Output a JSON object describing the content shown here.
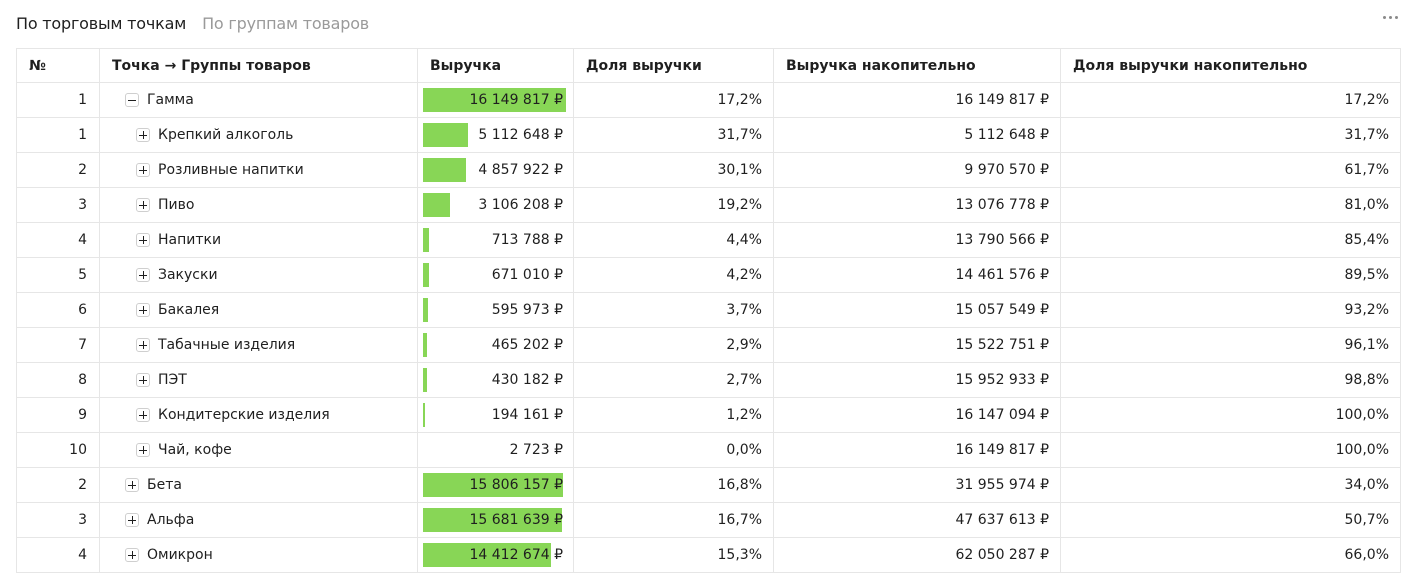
{
  "tabs": [
    {
      "label": "По торговым точкам",
      "active": true
    },
    {
      "label": "По группам товаров",
      "active": false
    }
  ],
  "table": {
    "headers": [
      "№",
      "Точка → Группы товаров",
      "Выручка",
      "Доля выручки",
      "Выручка накопительно",
      "Доля выручки накопительно"
    ],
    "bar_color": "#88d656",
    "rows": [
      {
        "num": "1",
        "name": "Гамма",
        "expanded": true,
        "level": 0,
        "revenue": "16 149 817 ₽",
        "share": "17,2%",
        "cum_revenue": "16 149 817 ₽",
        "cum_share": "17,2%",
        "bar": 1.0
      },
      {
        "num": "1",
        "name": "Крепкий алкоголь",
        "expanded": false,
        "level": 1,
        "revenue": "5 112 648 ₽",
        "share": "31,7%",
        "cum_revenue": "5 112 648 ₽",
        "cum_share": "31,7%",
        "bar": 0.317
      },
      {
        "num": "2",
        "name": "Розливные напитки",
        "expanded": false,
        "level": 1,
        "revenue": "4 857 922 ₽",
        "share": "30,1%",
        "cum_revenue": "9 970 570 ₽",
        "cum_share": "61,7%",
        "bar": 0.301
      },
      {
        "num": "3",
        "name": "Пиво",
        "expanded": false,
        "level": 1,
        "revenue": "3 106 208 ₽",
        "share": "19,2%",
        "cum_revenue": "13 076 778 ₽",
        "cum_share": "81,0%",
        "bar": 0.192
      },
      {
        "num": "4",
        "name": "Напитки",
        "expanded": false,
        "level": 1,
        "revenue": "713 788 ₽",
        "share": "4,4%",
        "cum_revenue": "13 790 566 ₽",
        "cum_share": "85,4%",
        "bar": 0.044
      },
      {
        "num": "5",
        "name": "Закуски",
        "expanded": false,
        "level": 1,
        "revenue": "671 010 ₽",
        "share": "4,2%",
        "cum_revenue": "14 461 576 ₽",
        "cum_share": "89,5%",
        "bar": 0.042
      },
      {
        "num": "6",
        "name": "Бакалея",
        "expanded": false,
        "level": 1,
        "revenue": "595 973 ₽",
        "share": "3,7%",
        "cum_revenue": "15 057 549 ₽",
        "cum_share": "93,2%",
        "bar": 0.037
      },
      {
        "num": "7",
        "name": "Табачные изделия",
        "expanded": false,
        "level": 1,
        "revenue": "465 202 ₽",
        "share": "2,9%",
        "cum_revenue": "15 522 751 ₽",
        "cum_share": "96,1%",
        "bar": 0.029
      },
      {
        "num": "8",
        "name": "ПЭТ",
        "expanded": false,
        "level": 1,
        "revenue": "430 182 ₽",
        "share": "2,7%",
        "cum_revenue": "15 952 933 ₽",
        "cum_share": "98,8%",
        "bar": 0.027
      },
      {
        "num": "9",
        "name": "Кондитерские изделия",
        "expanded": false,
        "level": 1,
        "revenue": "194 161 ₽",
        "share": "1,2%",
        "cum_revenue": "16 147 094 ₽",
        "cum_share": "100,0%",
        "bar": 0.012
      },
      {
        "num": "10",
        "name": "Чай, кофе",
        "expanded": false,
        "level": 1,
        "revenue": "2 723 ₽",
        "share": "0,0%",
        "cum_revenue": "16 149 817 ₽",
        "cum_share": "100,0%",
        "bar": 0.0
      },
      {
        "num": "2",
        "name": "Бета",
        "expanded": false,
        "level": 0,
        "revenue": "15 806 157 ₽",
        "share": "16,8%",
        "cum_revenue": "31 955 974 ₽",
        "cum_share": "34,0%",
        "bar": 0.979
      },
      {
        "num": "3",
        "name": "Альфа",
        "expanded": false,
        "level": 0,
        "revenue": "15 681 639 ₽",
        "share": "16,7%",
        "cum_revenue": "47 637 613 ₽",
        "cum_share": "50,7%",
        "bar": 0.971
      },
      {
        "num": "4",
        "name": "Омикрон",
        "expanded": false,
        "level": 0,
        "revenue": "14 412 674 ₽",
        "share": "15,3%",
        "cum_revenue": "62 050 287 ₽",
        "cum_share": "66,0%",
        "bar": 0.892
      }
    ]
  }
}
